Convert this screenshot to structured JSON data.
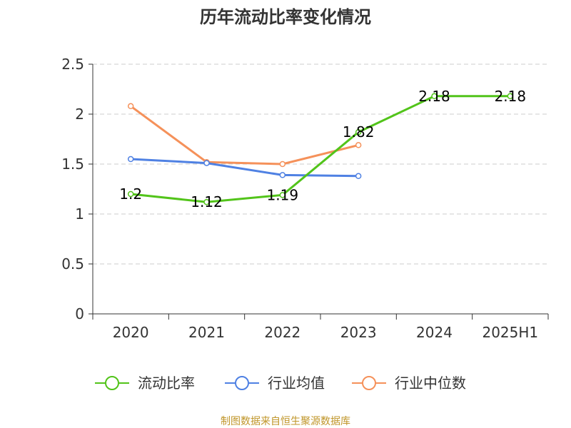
{
  "chart_data": {
    "type": "line",
    "title": "历年流动比率变化情况",
    "xlabel": "",
    "ylabel": "",
    "categories": [
      "2020",
      "2021",
      "2022",
      "2023",
      "2024",
      "2025H1"
    ],
    "ylim": [
      0,
      2.5
    ],
    "yticks": [
      "0",
      "0.5",
      "1",
      "1.5",
      "2",
      "2.5"
    ],
    "grid": true,
    "legend_position": "bottom",
    "series": [
      {
        "name": "流动比率",
        "color": "#52c41a",
        "values": [
          1.2,
          1.12,
          1.19,
          1.82,
          2.18,
          2.18
        ],
        "labels": [
          "1.2",
          "1.12",
          "1.19",
          "1.82",
          "2.18",
          "2.18"
        ]
      },
      {
        "name": "行业均值",
        "color": "#4f81e3",
        "values": [
          1.55,
          1.51,
          1.39,
          1.38,
          null,
          null
        ],
        "labels": []
      },
      {
        "name": "行业中位数",
        "color": "#f5915a",
        "values": [
          2.08,
          1.52,
          1.5,
          1.69,
          null,
          null
        ],
        "labels": []
      }
    ]
  },
  "source_text": "制图数据来自恒生聚源数据库"
}
